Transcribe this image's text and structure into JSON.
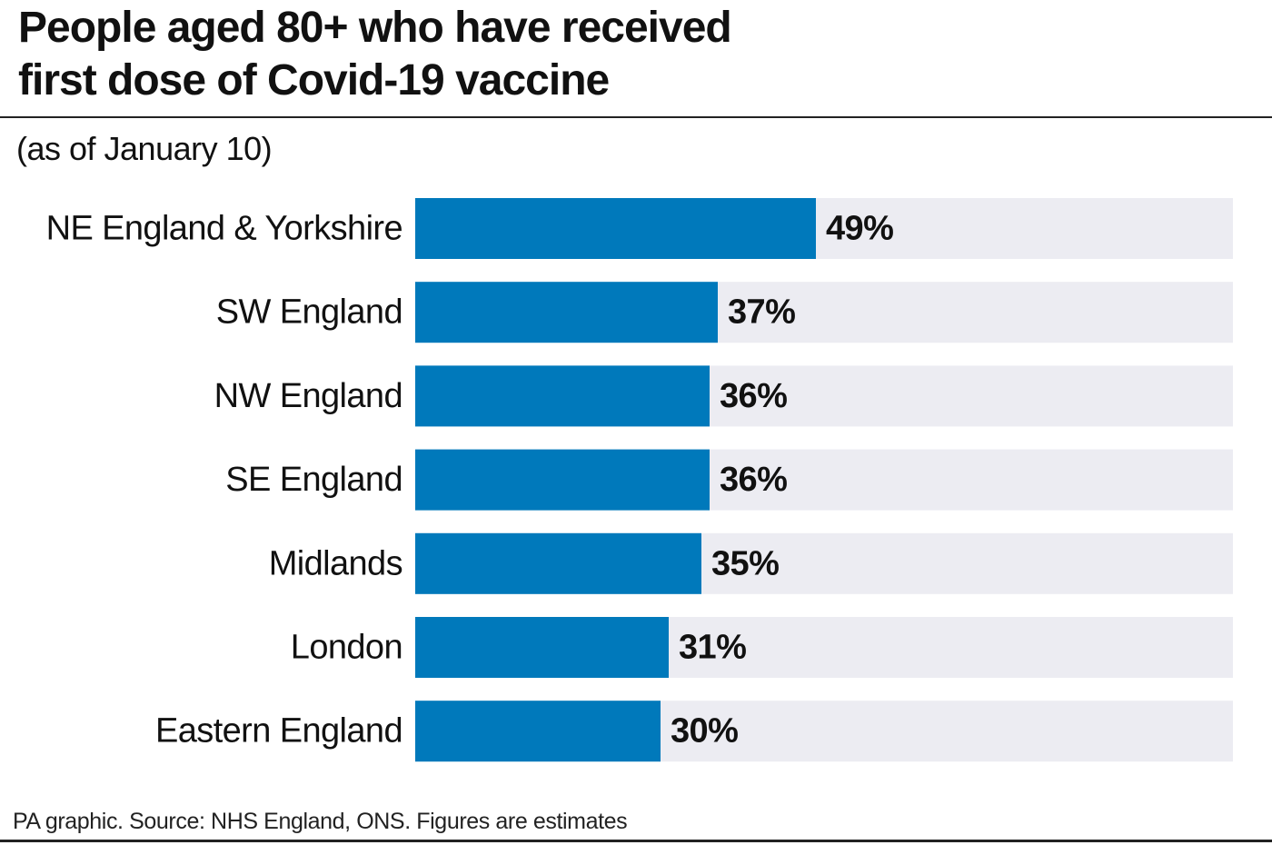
{
  "header": {
    "title_line1": "People aged 80+ who have received",
    "title_line2": "first dose of Covid-19 vaccine",
    "subtitle": "(as of January 10)"
  },
  "footer": {
    "source": "PA graphic. Source: NHS England, ONS. Figures are estimates"
  },
  "colors": {
    "bar": "#0079bb",
    "track": "#ececf2",
    "text": "#111111"
  },
  "chart_data": {
    "type": "bar",
    "orientation": "horizontal",
    "title": "People aged 80+ who have received first dose of Covid-19 vaccine",
    "subtitle": "(as of January 10)",
    "categories": [
      "NE England & Yorkshire",
      "SW England",
      "NW England",
      "SE England",
      "Midlands",
      "London",
      "Eastern England"
    ],
    "values": [
      49,
      37,
      36,
      36,
      35,
      31,
      30
    ],
    "value_labels": [
      "49%",
      "37%",
      "36%",
      "36%",
      "35%",
      "31%",
      "30%"
    ],
    "unit": "%",
    "xlim": [
      0,
      100
    ],
    "grid": false,
    "legend": "none"
  }
}
